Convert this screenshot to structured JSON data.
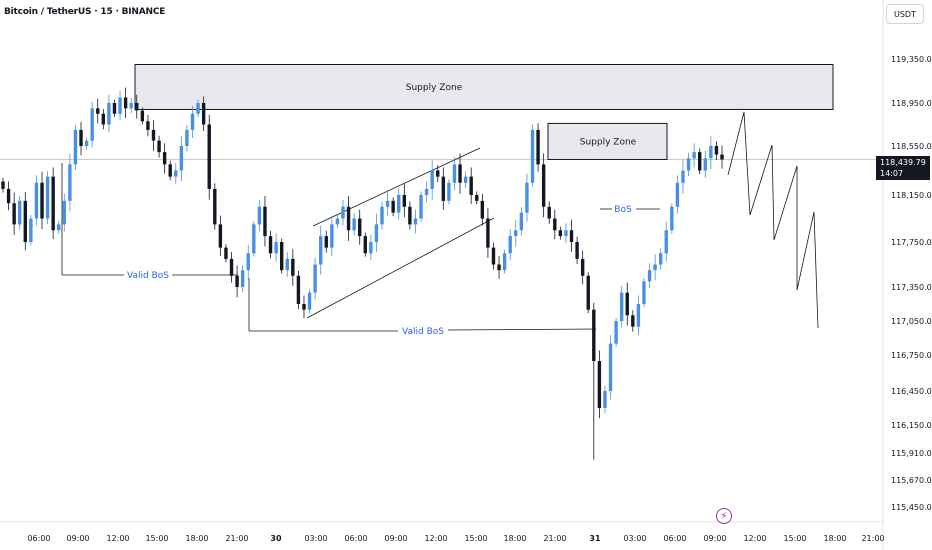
{
  "header": {
    "title": "Bitcoin / TetherUS · 15 · BINANCE",
    "currency": "USDT"
  },
  "price_tag": {
    "price": "118,439.79",
    "countdown": "14:07"
  },
  "colors": {
    "up": "#4a90e2",
    "down": "#131722",
    "accent": "#2962ff",
    "zone_fill": "#e8e9ec",
    "zone_border": "#131722"
  },
  "icons": {
    "bolt": "lightning-bolt-icon"
  },
  "chart_data": {
    "type": "candlestick",
    "title": "Bitcoin / TetherUS · 15 · BINANCE",
    "y_ticks": [
      {
        "label": "119,350.00",
        "value": 119350
      },
      {
        "label": "118,950.00",
        "value": 118950
      },
      {
        "label": "118,550.00",
        "value": 118550
      },
      {
        "label": "118,150.00",
        "value": 118150
      },
      {
        "label": "117,750.00",
        "value": 117750
      },
      {
        "label": "117,350.00",
        "value": 117350
      },
      {
        "label": "117,050.00",
        "value": 117050
      },
      {
        "label": "116,750.00",
        "value": 116750
      },
      {
        "label": "116,450.00",
        "value": 116450
      },
      {
        "label": "116,150.00",
        "value": 116150
      },
      {
        "label": "115,910.00",
        "value": 115910
      },
      {
        "label": "115,670.00",
        "value": 115670
      },
      {
        "label": "115,450.00",
        "value": 115450
      }
    ],
    "x_ticks": [
      {
        "label": "06:00",
        "bold": false
      },
      {
        "label": "09:00",
        "bold": false
      },
      {
        "label": "12:00",
        "bold": false
      },
      {
        "label": "15:00",
        "bold": false
      },
      {
        "label": "18:00",
        "bold": false
      },
      {
        "label": "21:00",
        "bold": false
      },
      {
        "label": "30",
        "bold": true
      },
      {
        "label": "03:00",
        "bold": false
      },
      {
        "label": "06:00",
        "bold": false
      },
      {
        "label": "09:00",
        "bold": false
      },
      {
        "label": "12:00",
        "bold": false
      },
      {
        "label": "15:00",
        "bold": false
      },
      {
        "label": "18:00",
        "bold": false
      },
      {
        "label": "21:00",
        "bold": false
      },
      {
        "label": "31",
        "bold": true
      },
      {
        "label": "03:00",
        "bold": false
      },
      {
        "label": "06:00",
        "bold": false
      },
      {
        "label": "09:00",
        "bold": false
      },
      {
        "label": "12:00",
        "bold": false
      },
      {
        "label": "15:00",
        "bold": false
      },
      {
        "label": "18:00",
        "bold": false
      },
      {
        "label": "21:00",
        "bold": false
      }
    ],
    "annotations": {
      "supply_zone_1": {
        "label": "Supply Zone",
        "top": 119300,
        "bottom": 118890
      },
      "supply_zone_2": {
        "label": "Supply Zone",
        "top": 118760,
        "bottom": 118440
      },
      "valid_bos_1": {
        "label": "Valid BoS",
        "price": 117470
      },
      "valid_bos_2": {
        "label": "Valid BoS",
        "price": 116990
      },
      "bos": {
        "label": "BoS",
        "price": 118120
      }
    },
    "current_price": 118439.79,
    "prices": [
      118200,
      118080,
      117900,
      118100,
      117750,
      117950,
      118250,
      117950,
      118300,
      117850,
      117900,
      118100,
      118400,
      118700,
      118550,
      118600,
      118900,
      118850,
      118750,
      118950,
      118850,
      119000,
      118900,
      118950,
      118880,
      118780,
      118700,
      118600,
      118500,
      118400,
      118300,
      118350,
      118550,
      118700,
      118850,
      118950,
      118750,
      118200,
      117900,
      117700,
      117600,
      117450,
      117350,
      117500,
      117650,
      117900,
      118050,
      117800,
      117650,
      117750,
      117500,
      117600,
      117450,
      117200,
      117150,
      117300,
      117550,
      117800,
      117700,
      117900,
      117950,
      118050,
      117850,
      117950,
      117800,
      117650,
      117750,
      117900,
      118050,
      118100,
      118000,
      118150,
      118050,
      117900,
      117950,
      118150,
      118200,
      118350,
      118300,
      118100,
      118250,
      118400,
      118250,
      118300,
      118150,
      118100,
      117950,
      117700,
      117550,
      117500,
      117650,
      117800,
      117850,
      118000,
      118250,
      118700,
      118400,
      118050,
      117950,
      117850,
      117800,
      117850,
      117750,
      117600,
      117450,
      117150,
      116700,
      116300,
      116450,
      116850,
      117050,
      117300,
      117100,
      117000,
      117200,
      117400,
      117500,
      117550,
      117650,
      117850,
      118050,
      118250,
      118350,
      118450,
      118500,
      118350,
      118450,
      118550,
      118480,
      118440
    ]
  }
}
